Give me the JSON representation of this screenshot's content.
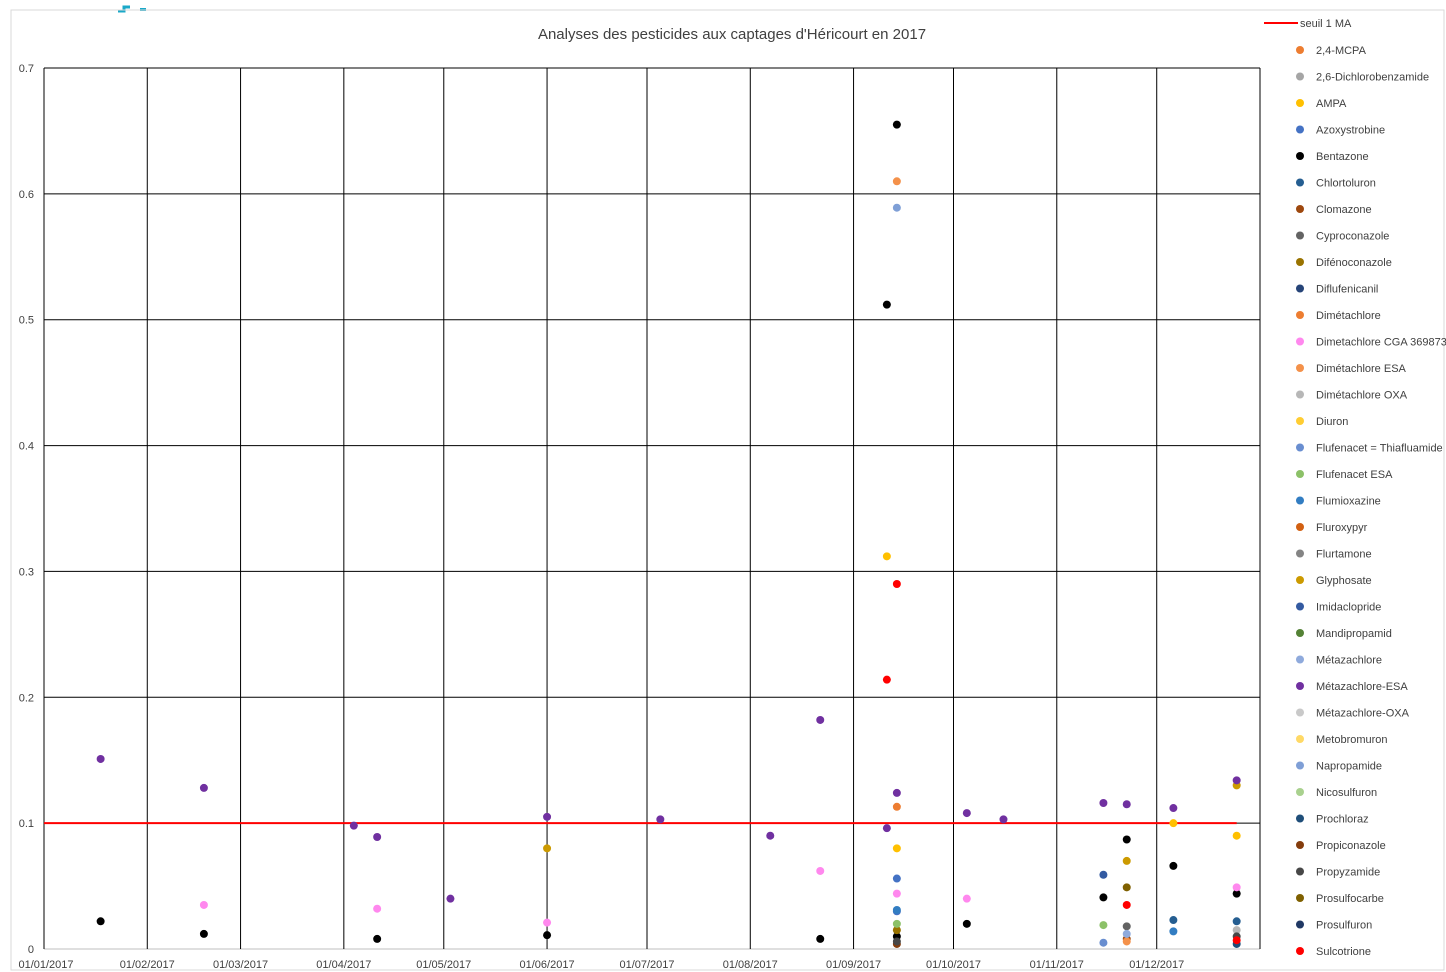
{
  "chart_data": {
    "type": "scatter",
    "title": "Analyses des pesticides aux captages d'Héricourt en 2017",
    "xlabel": "",
    "ylabel": "",
    "xlim": [
      "2017-01-01",
      "2017-12-31"
    ],
    "ylim": [
      0,
      0.7
    ],
    "x_ticks": [
      "01/01/2017",
      "01/02/2017",
      "01/03/2017",
      "01/04/2017",
      "01/05/2017",
      "01/06/2017",
      "01/07/2017",
      "01/08/2017",
      "01/09/2017",
      "01/10/2017",
      "01/11/2017",
      "01/12/2017"
    ],
    "y_ticks": [
      "0",
      "0.1",
      "0.2",
      "0.3",
      "0.4",
      "0.5",
      "0.6",
      "0.7"
    ],
    "grid": true,
    "legend": "right",
    "threshold": {
      "name": "seuil 1 MA",
      "value": 0.1,
      "color": "#ff0000",
      "x_start": "2017-01-01",
      "x_end": "2017-12-25"
    },
    "series": [
      {
        "name": "2,4-MCPA",
        "color": "#ed7d31",
        "points": []
      },
      {
        "name": "2,6-Dichlorobenzamide",
        "color": "#a5a5a5",
        "points": []
      },
      {
        "name": "AMPA",
        "color": "#ffc000",
        "points": [
          [
            "2017-09-11",
            0.312
          ],
          [
            "2017-09-14",
            0.08
          ],
          [
            "2017-12-06",
            0.1
          ],
          [
            "2017-12-25",
            0.09
          ]
        ]
      },
      {
        "name": "Azoxystrobine",
        "color": "#4472c4",
        "points": [
          [
            "2017-09-14",
            0.056
          ],
          [
            "2017-09-14",
            0.03
          ]
        ]
      },
      {
        "name": "Bentazone",
        "color": "#000000",
        "points": [
          [
            "2017-01-18",
            0.022
          ],
          [
            "2017-02-18",
            0.012
          ],
          [
            "2017-04-11",
            0.008
          ],
          [
            "2017-06-01",
            0.011
          ],
          [
            "2017-08-22",
            0.008
          ],
          [
            "2017-09-11",
            0.512
          ],
          [
            "2017-09-14",
            0.655
          ],
          [
            "2017-09-14",
            0.01
          ],
          [
            "2017-10-05",
            0.02
          ],
          [
            "2017-11-15",
            0.041
          ],
          [
            "2017-11-22",
            0.087
          ],
          [
            "2017-12-06",
            0.066
          ],
          [
            "2017-12-25",
            0.044
          ]
        ]
      },
      {
        "name": "Chlortoluron",
        "color": "#255e91",
        "points": [
          [
            "2017-12-06",
            0.023
          ],
          [
            "2017-12-25",
            0.022
          ]
        ]
      },
      {
        "name": "Clomazone",
        "color": "#9e480e",
        "points": [
          [
            "2017-11-22",
            0.008
          ]
        ]
      },
      {
        "name": "Cyproconazole",
        "color": "#636363",
        "points": [
          [
            "2017-11-22",
            0.018
          ]
        ]
      },
      {
        "name": "Difénoconazole",
        "color": "#997300",
        "points": [
          [
            "2017-09-14",
            0.015
          ]
        ]
      },
      {
        "name": "Diflufenicanil",
        "color": "#264478",
        "points": []
      },
      {
        "name": "Dimétachlore",
        "color": "#ed7d31",
        "points": [
          [
            "2017-09-14",
            0.113
          ]
        ]
      },
      {
        "name": "Dimetachlore CGA 369873",
        "color": "#ff88ee",
        "points": [
          [
            "2017-02-18",
            0.035
          ],
          [
            "2017-04-11",
            0.032
          ],
          [
            "2017-06-01",
            0.021
          ],
          [
            "2017-08-22",
            0.062
          ],
          [
            "2017-09-14",
            0.044
          ],
          [
            "2017-10-05",
            0.04
          ],
          [
            "2017-12-25",
            0.049
          ]
        ]
      },
      {
        "name": "Dimétachlore ESA",
        "color": "#f4914a",
        "points": [
          [
            "2017-09-14",
            0.61
          ],
          [
            "2017-11-22",
            0.006
          ]
        ]
      },
      {
        "name": "Dimétachlore OXA",
        "color": "#b7b7b7",
        "points": [
          [
            "2017-12-25",
            0.015
          ]
        ]
      },
      {
        "name": "Diuron",
        "color": "#ffcd33",
        "points": []
      },
      {
        "name": "Flufenacet = Thiafluamide",
        "color": "#698ed0",
        "points": [
          [
            "2017-11-15",
            0.005
          ]
        ]
      },
      {
        "name": "Flufenacet ESA",
        "color": "#8cc168",
        "points": [
          [
            "2017-09-14",
            0.02
          ],
          [
            "2017-11-15",
            0.019
          ]
        ]
      },
      {
        "name": "Flumioxazine",
        "color": "#327dc2",
        "points": [
          [
            "2017-09-14",
            0.031
          ],
          [
            "2017-12-06",
            0.014
          ]
        ]
      },
      {
        "name": "Fluroxypyr",
        "color": "#d26012",
        "points": []
      },
      {
        "name": "Flurtamone",
        "color": "#848484",
        "points": []
      },
      {
        "name": "Glyphosate",
        "color": "#cc9a00",
        "points": [
          [
            "2017-06-01",
            0.08
          ],
          [
            "2017-11-22",
            0.07
          ],
          [
            "2017-12-25",
            0.13
          ]
        ]
      },
      {
        "name": "Imidaclopride",
        "color": "#335aa1",
        "points": [
          [
            "2017-11-15",
            0.059
          ]
        ]
      },
      {
        "name": "Mandipropamid",
        "color": "#548235",
        "points": []
      },
      {
        "name": "Métazachlore",
        "color": "#8faadc",
        "points": [
          [
            "2017-11-22",
            0.012
          ]
        ]
      },
      {
        "name": "Métazachlore-ESA",
        "color": "#7030a0",
        "points": [
          [
            "2017-01-18",
            0.151
          ],
          [
            "2017-02-18",
            0.128
          ],
          [
            "2017-04-04",
            0.098
          ],
          [
            "2017-04-11",
            0.089
          ],
          [
            "2017-05-03",
            0.04
          ],
          [
            "2017-06-01",
            0.105
          ],
          [
            "2017-07-05",
            0.103
          ],
          [
            "2017-08-07",
            0.09
          ],
          [
            "2017-08-22",
            0.182
          ],
          [
            "2017-09-11",
            0.096
          ],
          [
            "2017-09-14",
            0.124
          ],
          [
            "2017-10-05",
            0.108
          ],
          [
            "2017-10-16",
            0.103
          ],
          [
            "2017-11-15",
            0.116
          ],
          [
            "2017-11-22",
            0.115
          ],
          [
            "2017-12-06",
            0.112
          ],
          [
            "2017-12-25",
            0.134
          ]
        ]
      },
      {
        "name": "Métazachlore-OXA",
        "color": "#c9c9c9",
        "points": []
      },
      {
        "name": "Metobromuron",
        "color": "#ffd966",
        "points": []
      },
      {
        "name": "Napropamide",
        "color": "#7f9fd6",
        "points": [
          [
            "2017-09-14",
            0.589
          ]
        ]
      },
      {
        "name": "Nicosulfuron",
        "color": "#a9d18e",
        "points": []
      },
      {
        "name": "Prochloraz",
        "color": "#1f4e79",
        "points": [
          [
            "2017-12-25",
            0.004
          ]
        ]
      },
      {
        "name": "Propiconazole",
        "color": "#843c0c",
        "points": [
          [
            "2017-09-14",
            0.004
          ]
        ]
      },
      {
        "name": "Propyzamide",
        "color": "#474747",
        "points": [
          [
            "2017-09-14",
            0.006
          ],
          [
            "2017-12-25",
            0.01
          ]
        ]
      },
      {
        "name": "Prosulfocarbe",
        "color": "#7f6000",
        "points": [
          [
            "2017-11-22",
            0.049
          ]
        ]
      },
      {
        "name": "Prosulfuron",
        "color": "#203864",
        "points": []
      },
      {
        "name": "Sulcotrione",
        "color": "#ff0000",
        "points": [
          [
            "2017-09-11",
            0.214
          ],
          [
            "2017-09-14",
            0.29
          ],
          [
            "2017-11-22",
            0.035
          ],
          [
            "2017-12-25",
            0.007
          ]
        ]
      }
    ]
  }
}
